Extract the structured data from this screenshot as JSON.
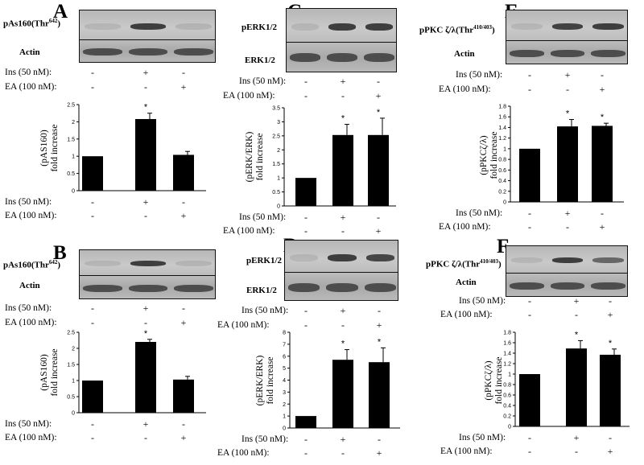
{
  "panels": [
    {
      "letter": "A",
      "target_prefix": "pAs160(Thr",
      "target_sup": "642",
      "target_suffix": ")",
      "control": "Actin",
      "cond1": "Ins (50 nM):",
      "cond2": "EA (100 nM):",
      "ins": [
        "-",
        "+",
        "-"
      ],
      "ea": [
        "-",
        "-",
        "+"
      ],
      "chart_ylabel_top": "(pAS160)",
      "chart_ylabel_bottom": "fold increase"
    },
    {
      "letter": "B",
      "target_prefix": "pAs160(Thr",
      "target_sup": "642",
      "target_suffix": ")",
      "control": "Actin",
      "cond1": "Ins (50 nM):",
      "cond2": "EA (100 nM):",
      "ins": [
        "-",
        "+",
        "-"
      ],
      "ea": [
        "-",
        "-",
        "+"
      ],
      "chart_ylabel_top": "(pAS160)",
      "chart_ylabel_bottom": "fold increase"
    },
    {
      "letter": "C",
      "target_prefix": "pERK1/2",
      "target_sup": "",
      "target_suffix": "",
      "control": "ERK1/2",
      "cond1": "Ins (50 nM):",
      "cond2": "EA (100 nM):",
      "ins": [
        "-",
        "+",
        "-"
      ],
      "ea": [
        "-",
        "-",
        "+"
      ],
      "chart_ylabel_top": "(pERK/ERK)",
      "chart_ylabel_bottom": "fold increase"
    },
    {
      "letter": "D",
      "target_prefix": "pERK1/2",
      "target_sup": "",
      "target_suffix": "",
      "control": "ERK1/2",
      "cond1": "Ins (50 nM):",
      "cond2": "EA (100 nM):",
      "ins": [
        "-",
        "+",
        "-"
      ],
      "ea": [
        "-",
        "-",
        "+"
      ],
      "chart_ylabel_top": "(pERK/ERK)",
      "chart_ylabel_bottom": "fold increase"
    },
    {
      "letter": "E",
      "target_prefix": "pPKC ζ/λ(Thr",
      "target_sup": "410/403",
      "target_suffix": ")",
      "control": "Actin",
      "cond1": "Ins (50 nM):",
      "cond2": "EA (100 nM):",
      "ins": [
        "-",
        "+",
        "-"
      ],
      "ea": [
        "-",
        "-",
        "+"
      ],
      "chart_ylabel_top": "(pPKCζ/λ)",
      "chart_ylabel_bottom": "fold increase"
    },
    {
      "letter": "F",
      "target_prefix": "pPKC ζ/λ(Thr",
      "target_sup": "410/403",
      "target_suffix": ")",
      "control": "Actin",
      "cond1": "Ins (50 nM):",
      "cond2": "EA (100 nM):",
      "ins": [
        "-",
        "+",
        "-"
      ],
      "ea": [
        "-",
        "-",
        "+"
      ],
      "chart_ylabel_top": "(pPKCζ/λ)",
      "chart_ylabel_bottom": "fold increase"
    }
  ],
  "chart_data": [
    {
      "panel": "A",
      "type": "bar",
      "values": [
        1.0,
        2.08,
        1.04
      ],
      "errors": [
        0,
        0.17,
        0.1
      ],
      "significant": [
        false,
        true,
        false
      ],
      "significance_mark": "*",
      "ylim": [
        0,
        2.5
      ],
      "yticks": [
        "0",
        "0.5",
        "1",
        "1.5",
        "2",
        "2.5"
      ]
    },
    {
      "panel": "B",
      "type": "bar",
      "values": [
        1.0,
        2.2,
        1.03
      ],
      "errors": [
        0,
        0.08,
        0.1
      ],
      "significant": [
        false,
        true,
        false
      ],
      "significance_mark": "*",
      "ylim": [
        0,
        2.5
      ],
      "yticks": [
        "0",
        "0.5",
        "1",
        "1.5",
        "2",
        "2.5"
      ]
    },
    {
      "panel": "C",
      "type": "bar",
      "values": [
        1.0,
        2.53,
        2.53
      ],
      "errors": [
        0,
        0.38,
        0.6
      ],
      "significant": [
        false,
        true,
        true
      ],
      "significance_mark": "*",
      "ylim": [
        0,
        3.5
      ],
      "yticks": [
        "0",
        "0.5",
        "1",
        "1.5",
        "2",
        "2.5",
        "3",
        "3.5"
      ]
    },
    {
      "panel": "D",
      "type": "bar",
      "values": [
        1.0,
        5.7,
        5.5
      ],
      "errors": [
        0,
        0.85,
        1.2
      ],
      "significant": [
        false,
        true,
        true
      ],
      "significance_mark": "*",
      "ylim": [
        0,
        8
      ],
      "yticks": [
        "0",
        "1",
        "2",
        "3",
        "4",
        "5",
        "6",
        "7",
        "8"
      ]
    },
    {
      "panel": "E",
      "type": "bar",
      "values": [
        1.0,
        1.42,
        1.43
      ],
      "errors": [
        0,
        0.13,
        0.05
      ],
      "significant": [
        false,
        true,
        true
      ],
      "significance_mark": "*",
      "ylim": [
        0,
        1.8
      ],
      "yticks": [
        "0",
        "0.2",
        "0.4",
        "0.6",
        "0.8",
        "1",
        "1.2",
        "1.4",
        "1.6",
        "1.8"
      ]
    },
    {
      "panel": "F",
      "type": "bar",
      "values": [
        1.0,
        1.49,
        1.37
      ],
      "errors": [
        0,
        0.15,
        0.11
      ],
      "significant": [
        false,
        true,
        true
      ],
      "significance_mark": "*",
      "ylim": [
        0,
        1.8
      ],
      "yticks": [
        "0",
        "0.2",
        "0.4",
        "0.6",
        "0.8",
        "1",
        "1.2",
        "1.4",
        "1.6",
        "1.8"
      ]
    }
  ]
}
